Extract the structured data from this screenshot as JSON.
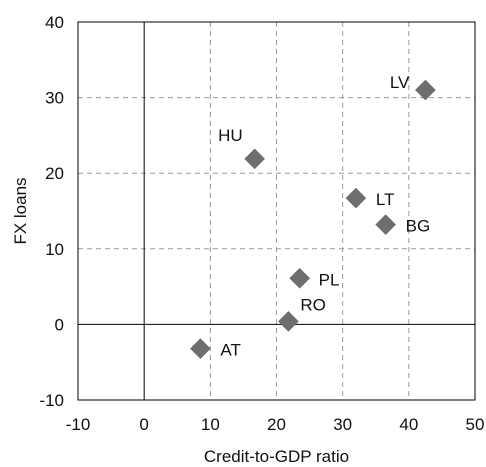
{
  "chart_data": {
    "type": "scatter",
    "title": "",
    "xlabel": "Credit-to-GDP ratio",
    "ylabel": "FX loans",
    "xlim": [
      -10,
      50
    ],
    "ylim": [
      -10,
      40
    ],
    "xticks": [
      -10,
      0,
      10,
      20,
      30,
      40,
      50
    ],
    "yticks": [
      -10,
      0,
      10,
      20,
      30,
      40
    ],
    "grid": true,
    "legend": "none",
    "marker": "diamond",
    "marker_color": "#6e6e6e",
    "points": [
      {
        "label": "AT",
        "x": 8.5,
        "y": -3.2
      },
      {
        "label": "RO",
        "x": 21.8,
        "y": 0.4
      },
      {
        "label": "PL",
        "x": 23.5,
        "y": 6.1
      },
      {
        "label": "HU",
        "x": 16.7,
        "y": 21.9
      },
      {
        "label": "LT",
        "x": 32.0,
        "y": 16.7
      },
      {
        "label": "BG",
        "x": 36.5,
        "y": 13.2
      },
      {
        "label": "LV",
        "x": 42.5,
        "y": 31.0
      }
    ]
  }
}
